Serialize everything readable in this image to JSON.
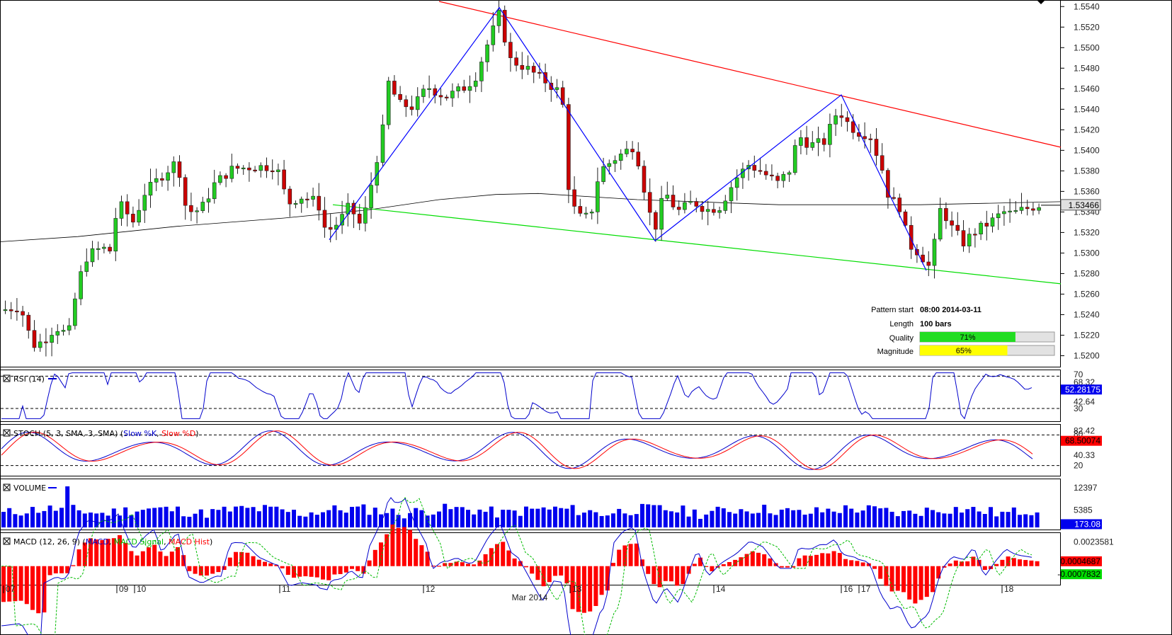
{
  "chart_data": {
    "type": "candlestick",
    "price_axis": {
      "range": [
        1.519,
        1.5545
      ],
      "ticks": [
        "1.5540",
        "1.5520",
        "1.5500",
        "1.5480",
        "1.5460",
        "1.5440",
        "1.5420",
        "1.5400",
        "1.5380",
        "1.5360",
        "1.5340",
        "1.5320",
        "1.5300",
        "1.5280",
        "1.5260",
        "1.5240",
        "1.5220",
        "1.5200"
      ],
      "current_price": "1.53466",
      "current_value": 1.53466
    },
    "x_axis": {
      "day_labels": [
        "07",
        "09",
        "10",
        "11",
        "12",
        "13",
        "14",
        "16",
        "17",
        "18"
      ],
      "month_label": "Mar 2014"
    },
    "moving_average": [
      [
        0,
        1.5311
      ],
      [
        110,
        1.5316
      ],
      [
        250,
        1.5326
      ],
      [
        400,
        1.5334
      ],
      [
        520,
        1.5342
      ],
      [
        620,
        1.5352
      ],
      [
        700,
        1.5357
      ],
      [
        760,
        1.5358
      ],
      [
        900,
        1.5352
      ],
      [
        1100,
        1.5347
      ],
      [
        1300,
        1.5347
      ],
      [
        1498,
        1.535
      ]
    ],
    "resistance_line": [
      [
        620,
        1.5545
      ],
      [
        1498,
        1.5403
      ]
    ],
    "support_line": [
      [
        470,
        1.5347
      ],
      [
        1498,
        1.527
      ]
    ],
    "zigzag": [
      [
        465,
        1.5313
      ],
      [
        705,
        1.5539
      ],
      [
        925,
        1.5312
      ],
      [
        1188,
        1.5454
      ],
      [
        1308,
        1.5283
      ]
    ],
    "pattern_info": {
      "start_label": "Pattern start",
      "start_value": "08:00 2014-03-11",
      "length_label": "Length",
      "length_value": "100 bars",
      "quality_label": "Quality",
      "quality_value": "71%",
      "quality_fraction": 0.71,
      "quality_color": "#22dd22",
      "magnitude_label": "Magnitude",
      "magnitude_value": "65%",
      "magnitude_fraction": 0.65,
      "magnitude_color": "#ffff00"
    },
    "rsi": {
      "title": "RSI (14)",
      "range": [
        15,
        75
      ],
      "ticks": [
        "70",
        "68.32",
        "42.64",
        "30"
      ],
      "levels": [
        68,
        30
      ],
      "current": "52.28175",
      "current_value": 52.28,
      "color": "#0000cc"
    },
    "stoch": {
      "title": "STOCH (5, 3, SMA, 3, SMA)",
      "k_label": "Slow %K",
      "d_label": "Slow %D",
      "range": [
        0,
        100
      ],
      "ticks": [
        "80",
        "82.42",
        "40.33",
        "20"
      ],
      "levels": [
        80,
        20
      ],
      "current": "68.50074",
      "current_value": 68.5,
      "k_color": "#0000cc",
      "d_color": "#ff0000"
    },
    "volume": {
      "title": "VOLUME",
      "range": [
        0,
        15000
      ],
      "ticks": [
        "12397",
        "5385"
      ],
      "current": "173.08",
      "current_value": 173.08,
      "color": "#0000ee"
    },
    "macd": {
      "title": "MACD (12, 26, 9)",
      "macd_label": "MACD",
      "signal_label": "MACD Signal",
      "hist_label": "MACD Hist",
      "range": [
        -0.0018,
        0.0032
      ],
      "ticks": [
        "0.0023581"
      ],
      "current_hist": "0.0004687",
      "current_hist_value": 0.0004687,
      "current_signal": "-0.0007832",
      "current_signal_value": -0.0007832,
      "macd_color": "#0000cc",
      "signal_color": "#00bb00",
      "hist_color": "#ff0000"
    },
    "colors": {
      "bull": "#22cc22",
      "bear": "#cc0000",
      "resistance": "#ff0000",
      "support": "#00dd00",
      "zigzag": "#0000ff",
      "ma": "#000000",
      "price_tag": "#e0e0e0",
      "value_tag_blue": "#0000ee",
      "value_tag_red": "#ff0000"
    }
  }
}
